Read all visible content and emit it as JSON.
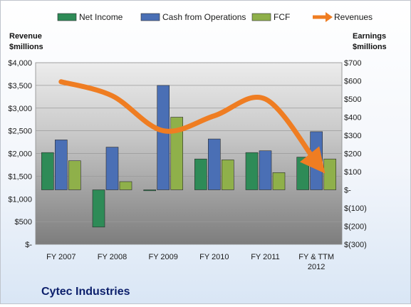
{
  "chart_data": {
    "type": "bar",
    "title": "Cytec Industries",
    "categories": [
      "FY 2007",
      "FY 2008",
      "FY 2009",
      "FY 2010",
      "FY 2011",
      "FY & TTM 2012"
    ],
    "left_axis": {
      "title_line1": "Revenue",
      "title_line2": "$millions",
      "range": [
        0,
        4000
      ],
      "ticks": [
        0,
        500,
        1000,
        1500,
        2000,
        2500,
        3000,
        3500,
        4000
      ],
      "tick_labels": [
        "$-",
        "$500",
        "$1,000",
        "$1,500",
        "$2,000",
        "$2,500",
        "$3,000",
        "$3,500",
        "$4,000"
      ]
    },
    "right_axis": {
      "title_line1": "Earnings",
      "title_line2": "$millions",
      "range": [
        -300,
        700
      ],
      "ticks": [
        -300,
        -200,
        -100,
        0,
        100,
        200,
        300,
        400,
        500,
        600,
        700
      ],
      "tick_labels": [
        "$(300)",
        "$(200)",
        "$(100)",
        "$-",
        "$100",
        "$200",
        "$300",
        "$400",
        "$500",
        "$600",
        "$700"
      ]
    },
    "series": [
      {
        "name": "Net Income",
        "axis": "right",
        "kind": "bar",
        "color": "#2e8b57",
        "values": [
          205,
          -205,
          -5,
          170,
          205,
          180
        ]
      },
      {
        "name": "Cash from Operations",
        "axis": "right",
        "kind": "bar",
        "color": "#4a6fb5",
        "values": [
          275,
          235,
          575,
          280,
          215,
          320
        ]
      },
      {
        "name": "FCF",
        "axis": "right",
        "kind": "bar",
        "color": "#8fb04a",
        "values": [
          160,
          45,
          400,
          165,
          95,
          170
        ]
      },
      {
        "name": "Revenues",
        "axis": "left",
        "kind": "line",
        "color": "#ef7d22",
        "values": [
          3580,
          3270,
          2500,
          2830,
          3200,
          1800
        ]
      }
    ],
    "grid": true,
    "legend_position": "top"
  }
}
